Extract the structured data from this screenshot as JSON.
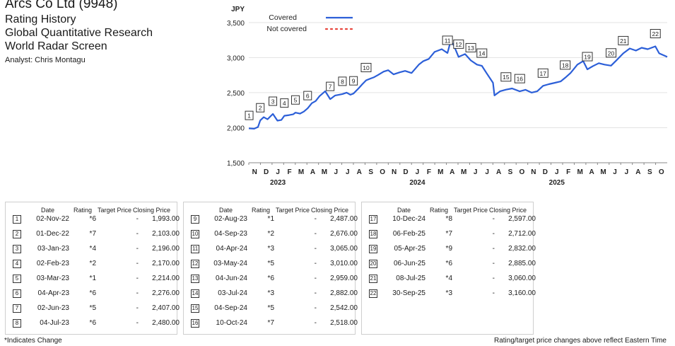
{
  "header": {
    "company": "Arcs Co Ltd (9948)",
    "line1": "Rating History",
    "line2": "Global Quantitative Research",
    "line3": "World Radar Screen",
    "analyst": "Analyst: Chris Montagu"
  },
  "chart_data": {
    "type": "line",
    "ylabel": "JPY",
    "ylim": [
      1500,
      3700
    ],
    "yticks": [
      1500,
      2000,
      2500,
      3000,
      3500
    ],
    "ytick_labels": [
      "1,500",
      "2,000",
      "2,500",
      "3,000",
      "3,500"
    ],
    "x_range": [
      "2022-11-01",
      "2025-10-31"
    ],
    "month_labels": [
      "N",
      "D",
      "J",
      "F",
      "M",
      "A",
      "M",
      "J",
      "J",
      "A",
      "S",
      "O",
      "N",
      "D",
      "J",
      "F",
      "M",
      "A",
      "M",
      "J",
      "J",
      "A",
      "S",
      "O",
      "N",
      "D",
      "J",
      "F",
      "M",
      "A",
      "M",
      "J",
      "J",
      "A",
      "S",
      "O"
    ],
    "year_labels": [
      {
        "label": "2023",
        "month_index": 2
      },
      {
        "label": "2024",
        "month_index": 14
      },
      {
        "label": "2025",
        "month_index": 26
      }
    ],
    "legend": [
      {
        "name": "Covered",
        "style": "solid",
        "color": "#2c5fd8"
      },
      {
        "name": "Not covered",
        "style": "dotted",
        "color": "#e8453c"
      }
    ],
    "series": [
      {
        "name": "Covered",
        "color": "#2c5fd8",
        "points": [
          [
            "2022-11-01",
            1990
          ],
          [
            "2022-11-15",
            1985
          ],
          [
            "2022-11-25",
            2010
          ],
          [
            "2022-12-01",
            2103
          ],
          [
            "2022-12-10",
            2150
          ],
          [
            "2022-12-20",
            2120
          ],
          [
            "2023-01-03",
            2196
          ],
          [
            "2023-01-15",
            2100
          ],
          [
            "2023-01-25",
            2110
          ],
          [
            "2023-02-02",
            2170
          ],
          [
            "2023-02-15",
            2180
          ],
          [
            "2023-02-25",
            2190
          ],
          [
            "2023-03-03",
            2214
          ],
          [
            "2023-03-15",
            2200
          ],
          [
            "2023-03-25",
            2230
          ],
          [
            "2023-04-04",
            2276
          ],
          [
            "2023-04-15",
            2350
          ],
          [
            "2023-04-25",
            2380
          ],
          [
            "2023-05-05",
            2450
          ],
          [
            "2023-05-20",
            2520
          ],
          [
            "2023-06-02",
            2407
          ],
          [
            "2023-06-15",
            2460
          ],
          [
            "2023-06-25",
            2470
          ],
          [
            "2023-07-04",
            2480
          ],
          [
            "2023-07-15",
            2500
          ],
          [
            "2023-07-25",
            2470
          ],
          [
            "2023-08-02",
            2487
          ],
          [
            "2023-08-15",
            2560
          ],
          [
            "2023-08-25",
            2620
          ],
          [
            "2023-09-04",
            2676
          ],
          [
            "2023-09-15",
            2700
          ],
          [
            "2023-09-25",
            2720
          ],
          [
            "2023-10-05",
            2750
          ],
          [
            "2023-10-20",
            2800
          ],
          [
            "2023-11-01",
            2820
          ],
          [
            "2023-11-15",
            2760
          ],
          [
            "2023-12-01",
            2790
          ],
          [
            "2023-12-15",
            2810
          ],
          [
            "2024-01-01",
            2780
          ],
          [
            "2024-01-20",
            2900
          ],
          [
            "2024-02-01",
            2950
          ],
          [
            "2024-02-15",
            2980
          ],
          [
            "2024-03-01",
            3080
          ],
          [
            "2024-03-20",
            3120
          ],
          [
            "2024-04-04",
            3065
          ],
          [
            "2024-04-12",
            3230
          ],
          [
            "2024-04-20",
            3180
          ],
          [
            "2024-05-03",
            3010
          ],
          [
            "2024-05-20",
            3050
          ],
          [
            "2024-06-04",
            2959
          ],
          [
            "2024-06-20",
            2900
          ],
          [
            "2024-07-03",
            2882
          ],
          [
            "2024-07-15",
            2780
          ],
          [
            "2024-08-01",
            2640
          ],
          [
            "2024-08-05",
            2460
          ],
          [
            "2024-08-20",
            2520
          ],
          [
            "2024-09-04",
            2542
          ],
          [
            "2024-09-20",
            2560
          ],
          [
            "2024-10-10",
            2518
          ],
          [
            "2024-10-25",
            2540
          ],
          [
            "2024-11-10",
            2500
          ],
          [
            "2024-11-25",
            2520
          ],
          [
            "2024-12-10",
            2597
          ],
          [
            "2024-12-25",
            2620
          ],
          [
            "2025-01-10",
            2640
          ],
          [
            "2025-01-25",
            2660
          ],
          [
            "2025-02-06",
            2712
          ],
          [
            "2025-02-20",
            2780
          ],
          [
            "2025-03-10",
            2900
          ],
          [
            "2025-03-25",
            2950
          ],
          [
            "2025-04-05",
            2832
          ],
          [
            "2025-04-20",
            2880
          ],
          [
            "2025-05-05",
            2920
          ],
          [
            "2025-05-20",
            2900
          ],
          [
            "2025-06-06",
            2885
          ],
          [
            "2025-06-20",
            2960
          ],
          [
            "2025-07-08",
            3060
          ],
          [
            "2025-07-25",
            3130
          ],
          [
            "2025-08-10",
            3100
          ],
          [
            "2025-08-25",
            3140
          ],
          [
            "2025-09-10",
            3120
          ],
          [
            "2025-09-30",
            3160
          ],
          [
            "2025-10-10",
            3060
          ],
          [
            "2025-10-31",
            3010
          ]
        ]
      }
    ],
    "markers": [
      {
        "n": "1",
        "date": "2022-11-02",
        "y": 1993
      },
      {
        "n": "2",
        "date": "2022-12-01",
        "y": 2103
      },
      {
        "n": "3",
        "date": "2023-01-03",
        "y": 2196
      },
      {
        "n": "4",
        "date": "2023-02-02",
        "y": 2170
      },
      {
        "n": "5",
        "date": "2023-03-03",
        "y": 2214
      },
      {
        "n": "6",
        "date": "2023-04-04",
        "y": 2276
      },
      {
        "n": "7",
        "date": "2023-06-02",
        "y": 2407
      },
      {
        "n": "8",
        "date": "2023-07-04",
        "y": 2480
      },
      {
        "n": "9",
        "date": "2023-08-02",
        "y": 2487
      },
      {
        "n": "10",
        "date": "2023-09-04",
        "y": 2676
      },
      {
        "n": "11",
        "date": "2024-04-04",
        "y": 3065
      },
      {
        "n": "12",
        "date": "2024-05-03",
        "y": 3010
      },
      {
        "n": "13",
        "date": "2024-06-04",
        "y": 2959
      },
      {
        "n": "14",
        "date": "2024-07-03",
        "y": 2882
      },
      {
        "n": "15",
        "date": "2024-09-04",
        "y": 2542
      },
      {
        "n": "16",
        "date": "2024-10-10",
        "y": 2518
      },
      {
        "n": "17",
        "date": "2024-12-10",
        "y": 2597
      },
      {
        "n": "18",
        "date": "2025-02-06",
        "y": 2712
      },
      {
        "n": "19",
        "date": "2025-04-05",
        "y": 2832
      },
      {
        "n": "20",
        "date": "2025-06-06",
        "y": 2885
      },
      {
        "n": "21",
        "date": "2025-07-08",
        "y": 3060
      },
      {
        "n": "22",
        "date": "2025-09-30",
        "y": 3160
      }
    ]
  },
  "table": {
    "headers": {
      "date": "Date",
      "rating": "Rating",
      "target": "Target Price",
      "close": "Closing Price"
    },
    "groups": [
      [
        {
          "n": "1",
          "date": "02-Nov-22",
          "rating": "*6",
          "target": "-",
          "close": "1,993.00"
        },
        {
          "n": "2",
          "date": "01-Dec-22",
          "rating": "*7",
          "target": "-",
          "close": "2,103.00"
        },
        {
          "n": "3",
          "date": "03-Jan-23",
          "rating": "*4",
          "target": "-",
          "close": "2,196.00"
        },
        {
          "n": "4",
          "date": "02-Feb-23",
          "rating": "*2",
          "target": "-",
          "close": "2,170.00"
        },
        {
          "n": "5",
          "date": "03-Mar-23",
          "rating": "*1",
          "target": "-",
          "close": "2,214.00"
        },
        {
          "n": "6",
          "date": "04-Apr-23",
          "rating": "*6",
          "target": "-",
          "close": "2,276.00"
        },
        {
          "n": "7",
          "date": "02-Jun-23",
          "rating": "*5",
          "target": "-",
          "close": "2,407.00"
        },
        {
          "n": "8",
          "date": "04-Jul-23",
          "rating": "*6",
          "target": "-",
          "close": "2,480.00"
        }
      ],
      [
        {
          "n": "9",
          "date": "02-Aug-23",
          "rating": "*1",
          "target": "-",
          "close": "2,487.00"
        },
        {
          "n": "10",
          "date": "04-Sep-23",
          "rating": "*2",
          "target": "-",
          "close": "2,676.00"
        },
        {
          "n": "11",
          "date": "04-Apr-24",
          "rating": "*3",
          "target": "-",
          "close": "3,065.00"
        },
        {
          "n": "12",
          "date": "03-May-24",
          "rating": "*5",
          "target": "-",
          "close": "3,010.00"
        },
        {
          "n": "13",
          "date": "04-Jun-24",
          "rating": "*6",
          "target": "-",
          "close": "2,959.00"
        },
        {
          "n": "14",
          "date": "03-Jul-24",
          "rating": "*3",
          "target": "-",
          "close": "2,882.00"
        },
        {
          "n": "15",
          "date": "04-Sep-24",
          "rating": "*5",
          "target": "-",
          "close": "2,542.00"
        },
        {
          "n": "16",
          "date": "10-Oct-24",
          "rating": "*7",
          "target": "-",
          "close": "2,518.00"
        }
      ],
      [
        {
          "n": "17",
          "date": "10-Dec-24",
          "rating": "*8",
          "target": "-",
          "close": "2,597.00"
        },
        {
          "n": "18",
          "date": "06-Feb-25",
          "rating": "*7",
          "target": "-",
          "close": "2,712.00"
        },
        {
          "n": "19",
          "date": "05-Apr-25",
          "rating": "*9",
          "target": "-",
          "close": "2,832.00"
        },
        {
          "n": "20",
          "date": "06-Jun-25",
          "rating": "*6",
          "target": "-",
          "close": "2,885.00"
        },
        {
          "n": "21",
          "date": "08-Jul-25",
          "rating": "*4",
          "target": "-",
          "close": "3,060.00"
        },
        {
          "n": "22",
          "date": "30-Sep-25",
          "rating": "*3",
          "target": "-",
          "close": "3,160.00"
        }
      ]
    ]
  },
  "footnotes": {
    "left": "*Indicates Change",
    "right": "Rating/target price changes above reflect Eastern Time"
  }
}
